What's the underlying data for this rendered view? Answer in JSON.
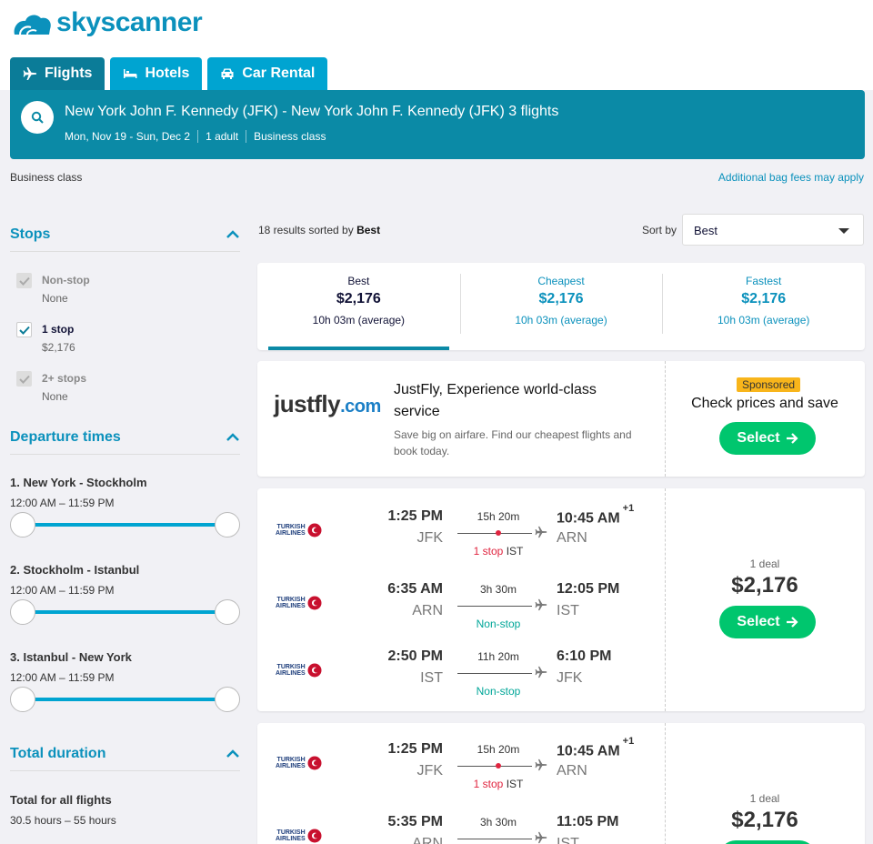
{
  "brand": {
    "name": "skyscanner",
    "color": "#0b91bc"
  },
  "tabs": [
    {
      "label": "Flights",
      "icon": "plane-icon",
      "active": true
    },
    {
      "label": "Hotels",
      "icon": "bed-icon",
      "active": false
    },
    {
      "label": "Car Rental",
      "icon": "car-icon",
      "active": false
    }
  ],
  "summary": {
    "title": "New York John F. Kennedy (JFK) - New York John F. Kennedy (JFK) 3 flights",
    "dates": "Mon, Nov 19 - Sun, Dec 2",
    "travellers": "1 adult",
    "cabin": "Business class"
  },
  "class_note": "Business class",
  "bag_link": "Additional bag fees may apply",
  "filters": {
    "stops": {
      "title": "Stops",
      "items": [
        {
          "label": "Non-stop",
          "price": "None",
          "checked": false,
          "disabled": true
        },
        {
          "label": "1 stop",
          "price": "$2,176",
          "checked": true,
          "disabled": false
        },
        {
          "label": "2+ stops",
          "price": "None",
          "checked": false,
          "disabled": true
        }
      ]
    },
    "departure": {
      "title": "Departure times",
      "routes": [
        {
          "name": "1. New York - Stockholm",
          "range": "12:00 AM – 11:59 PM"
        },
        {
          "name": "2. Stockholm - Istanbul",
          "range": "12:00 AM – 11:59 PM"
        },
        {
          "name": "3. Istanbul - New York",
          "range": "12:00 AM – 11:59 PM"
        }
      ]
    },
    "duration": {
      "title": "Total duration",
      "label": "Total for all flights",
      "range": "30.5 hours – 55 hours"
    }
  },
  "results": {
    "count_text": "18 results sorted by ",
    "sorted_by": "Best",
    "sort_label": "Sort by",
    "sort_value": "Best"
  },
  "sort_tabs": [
    {
      "name": "Best",
      "price": "$2,176",
      "duration": "10h 03m (average)",
      "active": true
    },
    {
      "name": "Cheapest",
      "price": "$2,176",
      "duration": "10h 03m (average)",
      "active": false
    },
    {
      "name": "Fastest",
      "price": "$2,176",
      "duration": "10h 03m (average)",
      "active": false
    }
  ],
  "ad": {
    "logo_main": "justfly",
    "logo_suffix": ".com",
    "title": "JustFly, Experience world-class service",
    "desc": "Save big on airfare. Find our cheapest flights and book today.",
    "badge": "Sponsored",
    "cta": "Check prices and save",
    "button": "Select"
  },
  "airline": {
    "line1": "TURKISH",
    "line2": "AIRLINES"
  },
  "itineraries": [
    {
      "deal": "1 deal",
      "price": "$2,176",
      "button": "Select",
      "legs": [
        {
          "dep_time": "1:25 PM",
          "dep_ap": "JFK",
          "duration": "15h 20m",
          "stop_text": "1 stop",
          "stop_ap": "IST",
          "arr_time": "10:45 AM",
          "plus": "+1",
          "arr_ap": "ARN"
        },
        {
          "dep_time": "6:35 AM",
          "dep_ap": "ARN",
          "duration": "3h 30m",
          "stop_text": "Non-stop",
          "stop_ap": "",
          "arr_time": "12:05 PM",
          "plus": "",
          "arr_ap": "IST"
        },
        {
          "dep_time": "2:50 PM",
          "dep_ap": "IST",
          "duration": "11h 20m",
          "stop_text": "Non-stop",
          "stop_ap": "",
          "arr_time": "6:10 PM",
          "plus": "",
          "arr_ap": "JFK"
        }
      ]
    },
    {
      "deal": "1 deal",
      "price": "$2,176",
      "legs": [
        {
          "dep_time": "1:25 PM",
          "dep_ap": "JFK",
          "duration": "15h 20m",
          "stop_text": "1 stop",
          "stop_ap": "IST",
          "arr_time": "10:45 AM",
          "plus": "+1",
          "arr_ap": "ARN"
        },
        {
          "dep_time": "5:35 PM",
          "dep_ap": "ARN",
          "duration": "3h 30m",
          "stop_text": "",
          "stop_ap": "",
          "arr_time": "11:05 PM",
          "plus": "",
          "arr_ap": "IST"
        }
      ]
    }
  ]
}
